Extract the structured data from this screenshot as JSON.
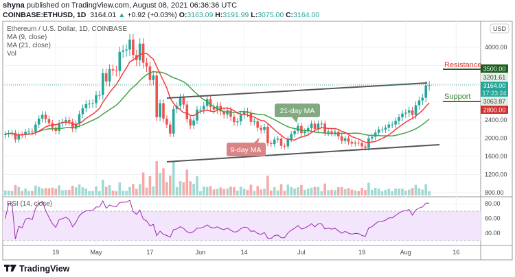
{
  "header": {
    "publisher": "shyna",
    "published_text": "published on TradingView.com, August 08, 2021 06:36:36 UTC",
    "symbol": "COINBASE:ETHUSD, 1D",
    "last": "3164.01",
    "change": "+0.92 (+0.03%)",
    "o_label": "O:",
    "o": "3163.09",
    "h_label": "H:",
    "h": "3191.99",
    "l_label": "L:",
    "l": "3075.00",
    "c_label": "C:",
    "c": "3164.00"
  },
  "legend": {
    "title": "Ethereum / U.S. Dollar, 1D, COINBASE",
    "ma9": "MA (9, close)",
    "ma21": "MA (21, close)",
    "vol": "Vol",
    "rsi": "RSI (14, close)"
  },
  "currency": "USD",
  "annotations": {
    "ma21": "21-day MA",
    "ma9": "9-day MA",
    "resistance": "Resistance",
    "support": "Support"
  },
  "price_tags": {
    "resistance": "3500.00",
    "upper": "3201.61",
    "last": "3164.00",
    "countdown": "17:23:24",
    "lower": "3063.87",
    "support": "2800.00"
  },
  "footer": {
    "brand": "TradingView"
  },
  "colors": {
    "up": "#26a69a",
    "down": "#ef5350",
    "ma9": "#f23b3b",
    "ma21": "#43a047",
    "rsi": "#9c27b0",
    "resistance": "#1b5e20",
    "support": "#d32f2f"
  },
  "chart_data": [
    {
      "type": "candlestick",
      "start_date": "2021-04-04",
      "end_date": "2021-08-08",
      "close": [
        2090,
        2110,
        2120,
        1970,
        2080,
        2070,
        2140,
        2150,
        2140,
        2300,
        2430,
        2515,
        2420,
        2330,
        2230,
        2160,
        2330,
        2360,
        2400,
        2360,
        2210,
        2320,
        2530,
        2660,
        2750,
        2760,
        2770,
        2945,
        2950,
        3430,
        3250,
        3520,
        3490,
        3480,
        3900,
        3930,
        3950,
        4170,
        3830,
        3720,
        4080,
        3660,
        3580,
        3280,
        3380,
        2460,
        2770,
        2430,
        2300,
        2100,
        2640,
        2710,
        2890,
        2740,
        2420,
        2280,
        2390,
        2630,
        2630,
        2710,
        2860,
        2690,
        2630,
        2710,
        2590,
        2520,
        2610,
        2470,
        2350,
        2370,
        2510,
        2590,
        2550,
        2360,
        2370,
        2230,
        2180,
        2250,
        1890,
        1870,
        1970,
        1990,
        1830,
        1820,
        1980,
        2090,
        2160,
        2270,
        2110,
        2150,
        2220,
        2320,
        2200,
        2320,
        2320,
        2120,
        2150,
        2110,
        2140,
        2040,
        1940,
        1995,
        1920,
        1880,
        1900,
        1895,
        1820,
        1790,
        1995,
        2030,
        2120,
        2190,
        2190,
        2230,
        2300,
        2300,
        2380,
        2460,
        2540,
        2560,
        2610,
        2510,
        2725,
        2830,
        2890,
        3160,
        3164
      ],
      "y_ticks": [
        800,
        1200,
        1600,
        2000,
        2400,
        2800,
        3200,
        3600,
        4000
      ],
      "x_ticks": [
        {
          "d": "2021-04-19",
          "label": "19"
        },
        {
          "d": "2021-05-01",
          "label": "May"
        },
        {
          "d": "2021-05-17",
          "label": "17"
        },
        {
          "d": "2021-06-01",
          "label": "Jun"
        },
        {
          "d": "2021-06-14",
          "label": "14"
        },
        {
          "d": "2021-07-01",
          "label": "Jul"
        },
        {
          "d": "2021-07-19",
          "label": "19"
        },
        {
          "d": "2021-08-01",
          "label": "Aug"
        },
        {
          "d": "2021-08-16",
          "label": "16"
        }
      ],
      "rsi_ticks": [
        "40.00",
        "60.00",
        "80.00"
      ],
      "rsi_bands": [
        30,
        70
      ],
      "resistance_level": 3500,
      "support_level": 2800
    }
  ]
}
